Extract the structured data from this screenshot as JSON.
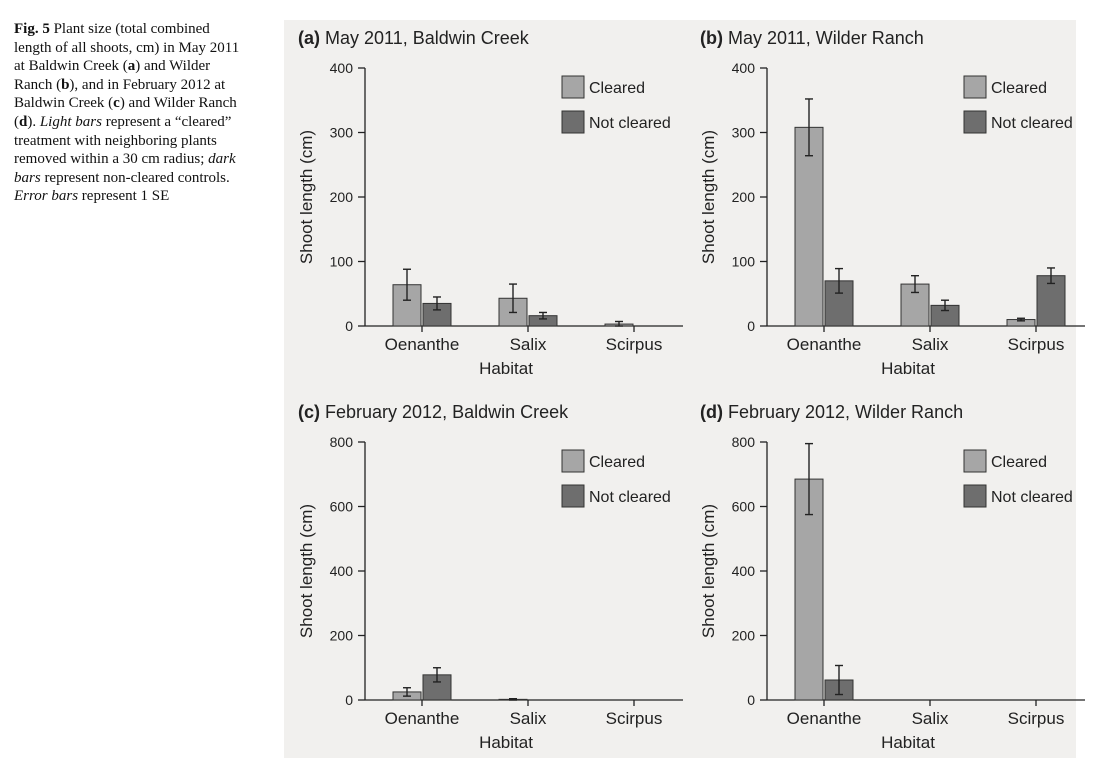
{
  "caption": {
    "fig_label": "Fig. 5",
    "text_1": " Plant size (total combined length of all shoots, cm) in May 2011 at Baldwin Creek (",
    "a": "a",
    "text_2": ") and Wilder Ranch (",
    "b": "b",
    "text_3": "), and in February 2012 at Baldwin Creek (",
    "c": "c",
    "text_4": ") and Wilder Ranch (",
    "d": "d",
    "text_5": "). ",
    "light_bars": "Light bars",
    "text_6": " represent a “cleared” treatment with neighboring plants removed within a 30 cm radius; ",
    "dark_bars": "dark bars",
    "text_7": " represent non-cleared controls. ",
    "error_bars": "Error bars",
    "text_8": " represent 1 SE"
  },
  "colors": {
    "cleared": "#a6a6a6",
    "not_cleared": "#6e6e6e",
    "bar_stroke": "#333333",
    "axis": "#222222",
    "figure_background": "#f1f0ee"
  },
  "chart_data": [
    {
      "type": "bar",
      "panel": "(a)",
      "title": "May 2011, Baldwin Creek",
      "xlabel": "Habitat",
      "ylabel": "Shoot length (cm)",
      "ylim": [
        0,
        400
      ],
      "yticks": [
        0,
        100,
        200,
        300,
        400
      ],
      "categories": [
        "Oenanthe",
        "Salix",
        "Scirpus"
      ],
      "legend": "top-right",
      "series": [
        {
          "name": "Cleared",
          "values": [
            64,
            43,
            3
          ],
          "se": [
            24,
            22,
            4
          ]
        },
        {
          "name": "Not cleared",
          "values": [
            35,
            16,
            0
          ],
          "se": [
            10,
            5,
            0
          ]
        }
      ]
    },
    {
      "type": "bar",
      "panel": "(b)",
      "title": "May 2011, Wilder Ranch",
      "xlabel": "Habitat",
      "ylabel": "Shoot length (cm)",
      "ylim": [
        0,
        400
      ],
      "yticks": [
        0,
        100,
        200,
        300,
        400
      ],
      "categories": [
        "Oenanthe",
        "Salix",
        "Scirpus"
      ],
      "legend": "top-right",
      "series": [
        {
          "name": "Cleared",
          "values": [
            308,
            65,
            10
          ],
          "se": [
            44,
            13,
            2
          ]
        },
        {
          "name": "Not cleared",
          "values": [
            70,
            32,
            78
          ],
          "se": [
            19,
            8,
            12
          ]
        }
      ]
    },
    {
      "type": "bar",
      "panel": "(c)",
      "title": "February 2012, Baldwin Creek",
      "xlabel": "Habitat",
      "ylabel": "Shoot length (cm)",
      "ylim": [
        0,
        800
      ],
      "yticks": [
        0,
        200,
        400,
        600,
        800
      ],
      "categories": [
        "Oenanthe",
        "Salix",
        "Scirpus"
      ],
      "legend": "top-right",
      "series": [
        {
          "name": "Cleared",
          "values": [
            25,
            2,
            0
          ],
          "se": [
            13,
            2,
            0
          ]
        },
        {
          "name": "Not cleared",
          "values": [
            78,
            0,
            0
          ],
          "se": [
            22,
            0,
            0
          ]
        }
      ]
    },
    {
      "type": "bar",
      "panel": "(d)",
      "title": "February 2012, Wilder Ranch",
      "xlabel": "Habitat",
      "ylabel": "Shoot length (cm)",
      "ylim": [
        0,
        800
      ],
      "yticks": [
        0,
        200,
        400,
        600,
        800
      ],
      "categories": [
        "Oenanthe",
        "Salix",
        "Scirpus"
      ],
      "legend": "top-right",
      "series": [
        {
          "name": "Cleared",
          "values": [
            685,
            0,
            0
          ],
          "se": [
            110,
            0,
            0
          ]
        },
        {
          "name": "Not cleared",
          "values": [
            62,
            0,
            0
          ],
          "se": [
            45,
            0,
            0
          ]
        }
      ]
    }
  ]
}
